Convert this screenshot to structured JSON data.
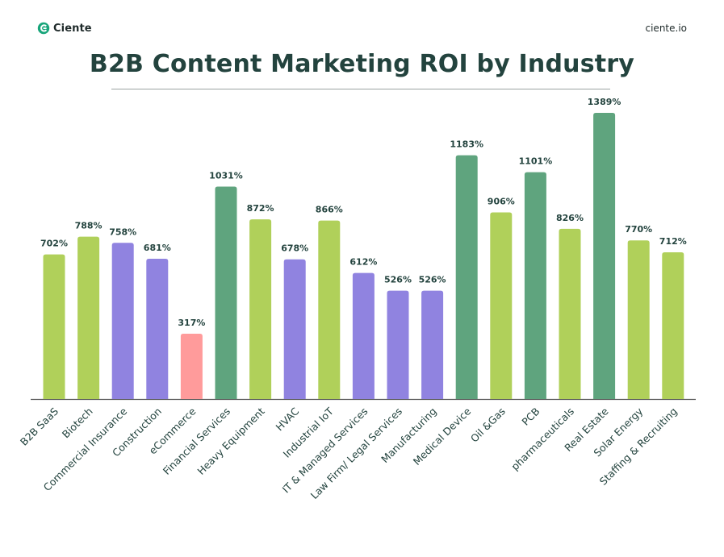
{
  "header": {
    "brand_name": "Ciente",
    "brand_icon": "ciente-logo-icon",
    "site_url": "ciente.io"
  },
  "chart_data": {
    "type": "bar",
    "title": "B2B Content Marketing  ROI by Industry",
    "xlabel": "",
    "ylabel": "",
    "ylim": [
      0,
      1500
    ],
    "grid": false,
    "legend": "none",
    "categories": [
      "B2B SaaS",
      "Biotech",
      "Commercial Insurance",
      "Construction",
      "eCommerce",
      "Financial Services",
      "Heavy Equipment",
      "HVAC",
      "Industrial IoT",
      "IT & Managed  Services",
      "Law Firm/ Legal Services",
      "Manufacturing",
      "Medical Device",
      "Oil &Gas",
      "PCB",
      "pharmaceuticals",
      "Real Estate",
      "Solar Energy",
      "Staffing & Recruiting"
    ],
    "values": [
      702,
      788,
      758,
      681,
      317,
      1031,
      872,
      678,
      866,
      612,
      526,
      526,
      1183,
      906,
      1101,
      826,
      1389,
      770,
      712
    ],
    "value_labels": [
      "702%",
      "788%",
      "758%",
      "681%",
      "317%",
      "1031%",
      "872%",
      "678%",
      "866%",
      "612%",
      "526%",
      "526%",
      "1183%",
      "906%",
      "1101%",
      "826%",
      "1389%",
      "770%",
      "712%"
    ],
    "bar_colors": [
      "#b0d05a",
      "#b0d05a",
      "#9083e0",
      "#9083e0",
      "#ff9b9b",
      "#5fa47e",
      "#b0d05a",
      "#9083e0",
      "#b0d05a",
      "#9083e0",
      "#9083e0",
      "#9083e0",
      "#5fa47e",
      "#b0d05a",
      "#5fa47e",
      "#b0d05a",
      "#5fa47e",
      "#b0d05a",
      "#b0d05a"
    ]
  }
}
